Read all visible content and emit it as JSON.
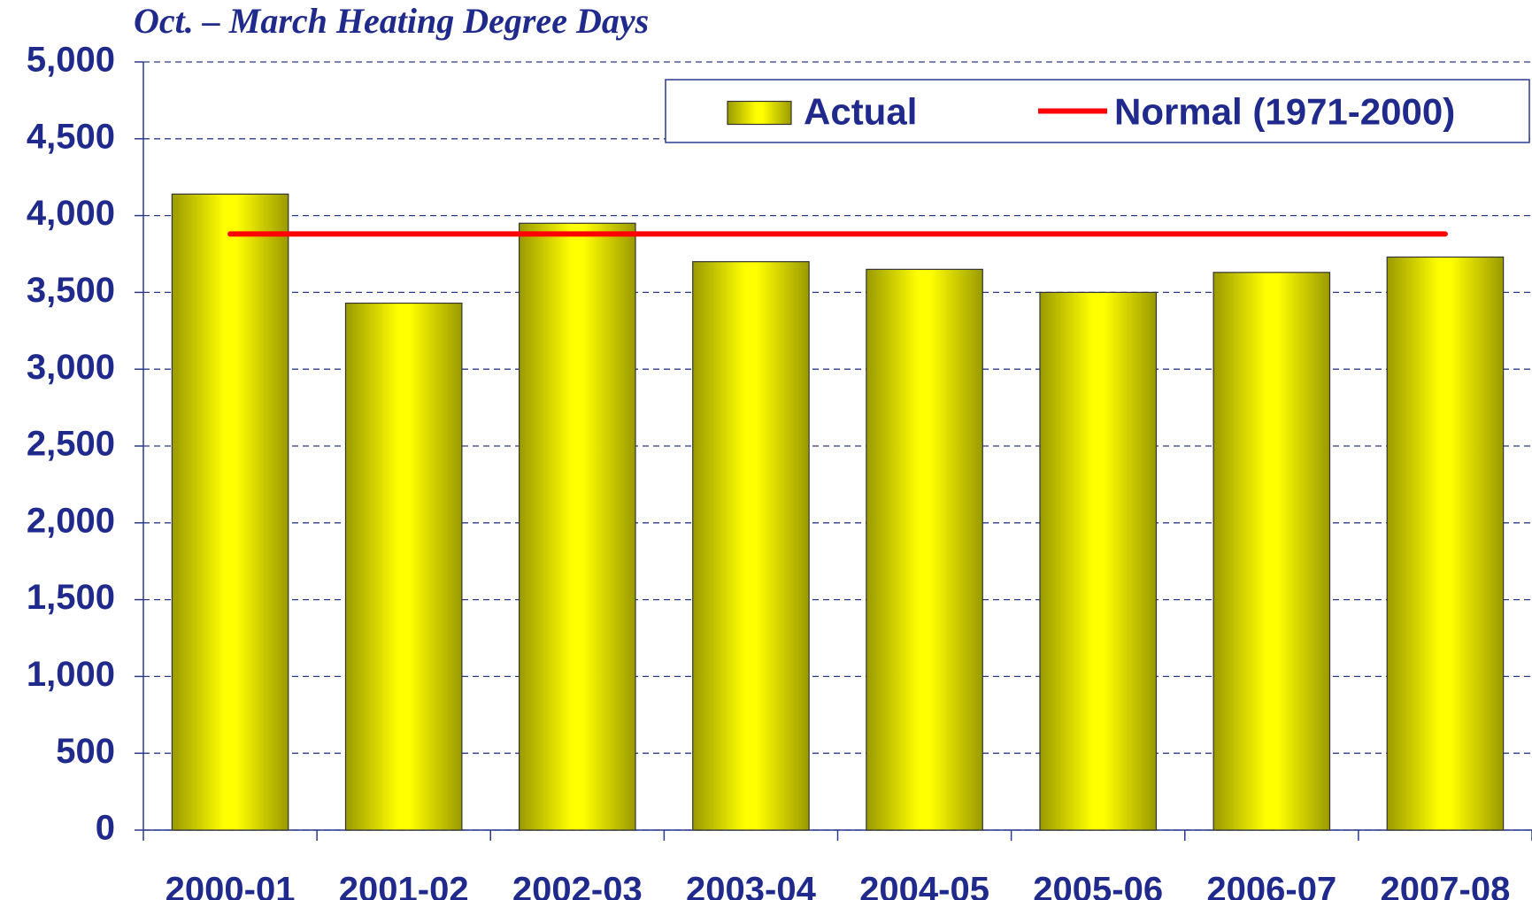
{
  "chart_data": {
    "type": "bar",
    "title": "Oct. – March Heating Degree Days",
    "categories": [
      "2000-01",
      "2001-02",
      "2002-03",
      "2003-04",
      "2004-05",
      "2005-06",
      "2006-07",
      "2007-08"
    ],
    "series": [
      {
        "name": "Actual",
        "type": "bar",
        "color": "#ffff00",
        "values": [
          4140,
          3430,
          3950,
          3700,
          3650,
          3500,
          3630,
          3730
        ]
      },
      {
        "name": "Normal (1971-2000)",
        "type": "line",
        "color": "#ff0000",
        "values": [
          3880,
          3880,
          3880,
          3880,
          3880,
          3880,
          3880,
          3880
        ]
      }
    ],
    "ylim": [
      0,
      5000
    ],
    "yticks": [
      {
        "value": 0,
        "label": "0"
      },
      {
        "value": 500,
        "label": "500"
      },
      {
        "value": 1000,
        "label": "1,000"
      },
      {
        "value": 1500,
        "label": "1,500"
      },
      {
        "value": 2000,
        "label": "2,000"
      },
      {
        "value": 2500,
        "label": "2,500"
      },
      {
        "value": 3000,
        "label": "3,000"
      },
      {
        "value": 3500,
        "label": "3,500"
      },
      {
        "value": 4000,
        "label": "4,000"
      },
      {
        "value": 4500,
        "label": "4,500"
      },
      {
        "value": 5000,
        "label": "5,000"
      }
    ],
    "grid": true,
    "legend": "top-right"
  }
}
